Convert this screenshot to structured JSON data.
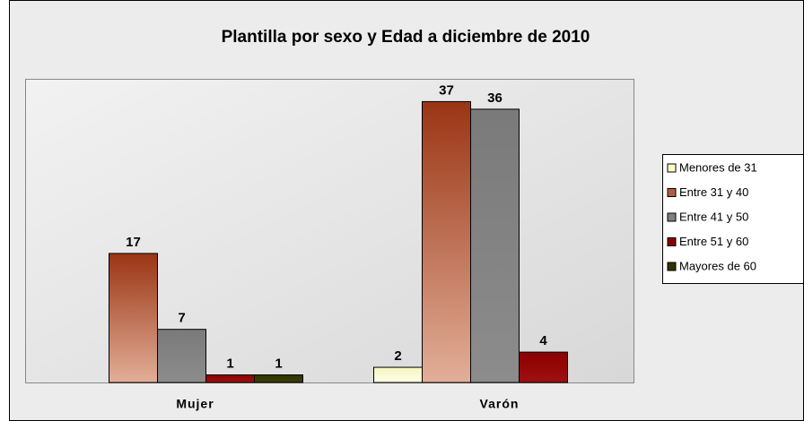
{
  "chart_data": {
    "type": "bar",
    "title": "Plantilla por sexo y Edad a diciembre de 2010",
    "categories": [
      "Mujer",
      "Varón"
    ],
    "series": [
      {
        "name": "Menores de 31",
        "color": "#ffffcc",
        "values": [
          null,
          2
        ]
      },
      {
        "name": "Entre 31 y 40",
        "color": "#b0603e",
        "values": [
          17,
          37
        ]
      },
      {
        "name": "Entre 41 y 50",
        "color": "#808080",
        "values": [
          7,
          36
        ]
      },
      {
        "name": "Entre 51 y 60",
        "color": "#8b0000",
        "values": [
          1,
          4
        ]
      },
      {
        "name": "Mayores de 60",
        "color": "#333300",
        "values": [
          1,
          null
        ]
      }
    ],
    "ylim": [
      0,
      40
    ],
    "legend": "right"
  }
}
